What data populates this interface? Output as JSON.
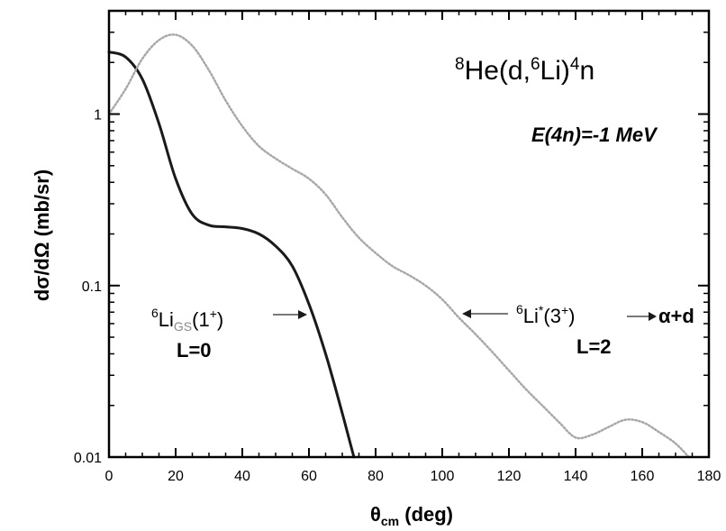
{
  "chart_data": {
    "type": "line",
    "xlabel": {
      "main": "θ",
      "sub": "cm",
      "rest": " (deg)"
    },
    "ylabel": "dσ/dΩ (mb/sr)",
    "xlim": [
      0,
      180
    ],
    "ylim": [
      0.01,
      4.0
    ],
    "yscale": "log",
    "xticks": [
      0,
      20,
      40,
      60,
      80,
      100,
      120,
      140,
      160,
      180
    ],
    "xtick_labels": [
      "0",
      "20",
      "40",
      "60",
      "80",
      "100",
      "120",
      "140",
      "160",
      "180"
    ],
    "yticks": [
      0.01,
      0.1,
      1
    ],
    "ytick_labels": [
      "0.01",
      "0.1",
      "1"
    ],
    "grid": false,
    "reaction_label": {
      "pre": "8",
      "a": "He(d,",
      "b": "6",
      "c": "Li)",
      "d": "4",
      "e": "n"
    },
    "energy_label": "E(4n)=-1 MeV",
    "series": [
      {
        "label": {
          "pre": "6",
          "main": "Li",
          "sub": "GS",
          "post": "(1",
          "sup": "+",
          "close": ")"
        },
        "l_label": "L=0",
        "color": "#1a1a1a",
        "style": "solid",
        "x": [
          0,
          5,
          10,
          15,
          20,
          25,
          30,
          35,
          40,
          45,
          50,
          55,
          60,
          65,
          70,
          73.5
        ],
        "y": [
          2.3,
          2.15,
          1.6,
          0.88,
          0.42,
          0.26,
          0.225,
          0.22,
          0.215,
          0.2,
          0.17,
          0.13,
          0.078,
          0.04,
          0.018,
          0.01
        ]
      },
      {
        "label": {
          "pre": "6",
          "main": "Li",
          "sup": "*",
          "post": "(3",
          "sup2": "+",
          "close": ")",
          "decay": "α+d"
        },
        "l_label": "L=2",
        "color": "#a8a8a8",
        "style": "dotted",
        "x": [
          0,
          5,
          10,
          15,
          20,
          25,
          30,
          35,
          40,
          45,
          50,
          55,
          60,
          65,
          70,
          75,
          80,
          85,
          90,
          95,
          100,
          105,
          110,
          115,
          120,
          125,
          130,
          135,
          140,
          145,
          150,
          155,
          160,
          165,
          170,
          174
        ],
        "y": [
          1.0,
          1.4,
          2.1,
          2.7,
          2.9,
          2.5,
          1.8,
          1.2,
          0.85,
          0.65,
          0.55,
          0.48,
          0.42,
          0.34,
          0.25,
          0.19,
          0.155,
          0.13,
          0.115,
          0.1,
          0.083,
          0.065,
          0.052,
          0.041,
          0.032,
          0.025,
          0.02,
          0.016,
          0.013,
          0.0135,
          0.015,
          0.0165,
          0.016,
          0.014,
          0.012,
          0.01
        ]
      }
    ]
  }
}
